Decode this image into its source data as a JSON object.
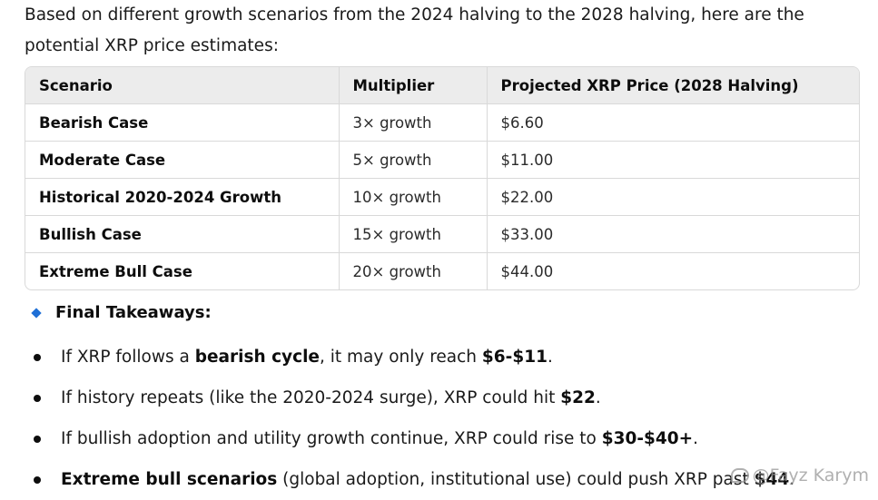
{
  "intro": "Based on different growth scenarios from the 2024 halving to the 2028 halving, here are the potential XRP price estimates:",
  "table": {
    "headers": [
      "Scenario",
      "Multiplier",
      "Projected XRP Price (2028 Halving)"
    ],
    "rows": [
      [
        "Bearish Case",
        "3× growth",
        "$6.60"
      ],
      [
        "Moderate Case",
        "5× growth",
        "$11.00"
      ],
      [
        "Historical 2020-2024 Growth",
        "10× growth",
        "$22.00"
      ],
      [
        "Bullish Case",
        "15× growth",
        "$33.00"
      ],
      [
        "Extreme Bull Case",
        "20× growth",
        "$44.00"
      ]
    ]
  },
  "takeaways": {
    "title": "Final Takeaways:",
    "items": [
      {
        "pre": "If XRP follows a ",
        "b1": "bearish cycle",
        "mid": ", it may only reach ",
        "b2": "$6-$11",
        "post": "."
      },
      {
        "pre": "If history repeats (like the 2020-2024 surge), XRP could hit ",
        "b1": "$22",
        "post": "."
      },
      {
        "pre": "If bullish adoption and utility growth continue, XRP could rise to ",
        "b1": "$30-$40+",
        "post": "."
      },
      {
        "b1": "Extreme bull scenarios",
        "mid": " (global adoption, institutional use) could push XRP past ",
        "b2": "$44",
        "post": "."
      }
    ]
  },
  "watermark": "@Fayz Karym",
  "colors": {
    "accent": "#1f6fd6",
    "header_bg": "#ececec",
    "border": "#d9d9d9"
  }
}
